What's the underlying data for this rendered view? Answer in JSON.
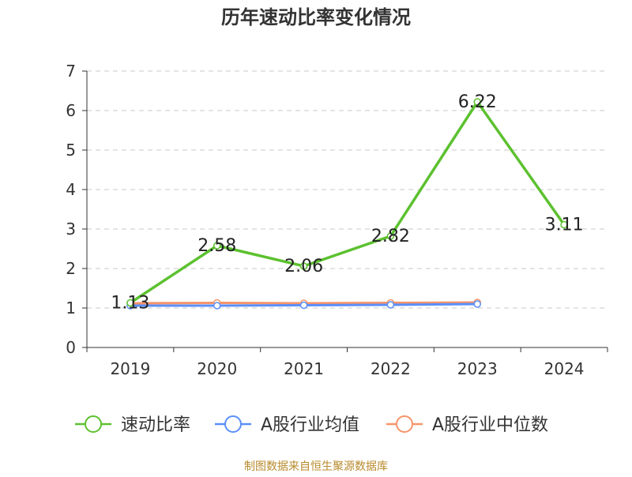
{
  "chart_data": {
    "type": "line",
    "title": "历年速动比率变化情况",
    "categories": [
      "2019",
      "2020",
      "2021",
      "2022",
      "2023",
      "2024"
    ],
    "y_ticks": [
      "0",
      "1",
      "2",
      "3",
      "4",
      "5",
      "6",
      "7"
    ],
    "ylim": [
      0,
      7
    ],
    "grid": true,
    "legend_position": "bottom",
    "series": [
      {
        "name": "速动比率",
        "color": "#5cc12f",
        "values": [
          1.13,
          2.58,
          2.06,
          2.82,
          6.22,
          3.11
        ],
        "labels": [
          "1.13",
          "2.58",
          "2.06",
          "2.82",
          "6.22",
          "3.11"
        ]
      },
      {
        "name": "A股行业均值",
        "color": "#5b8ff9",
        "values": [
          1.06,
          1.06,
          1.07,
          1.08,
          1.1,
          null
        ],
        "labels": []
      },
      {
        "name": "A股行业中位数",
        "color": "#f6946a",
        "values": [
          1.12,
          1.13,
          1.12,
          1.13,
          1.14,
          null
        ],
        "labels": []
      }
    ],
    "source": "制图数据来自恒生聚源数据库"
  }
}
